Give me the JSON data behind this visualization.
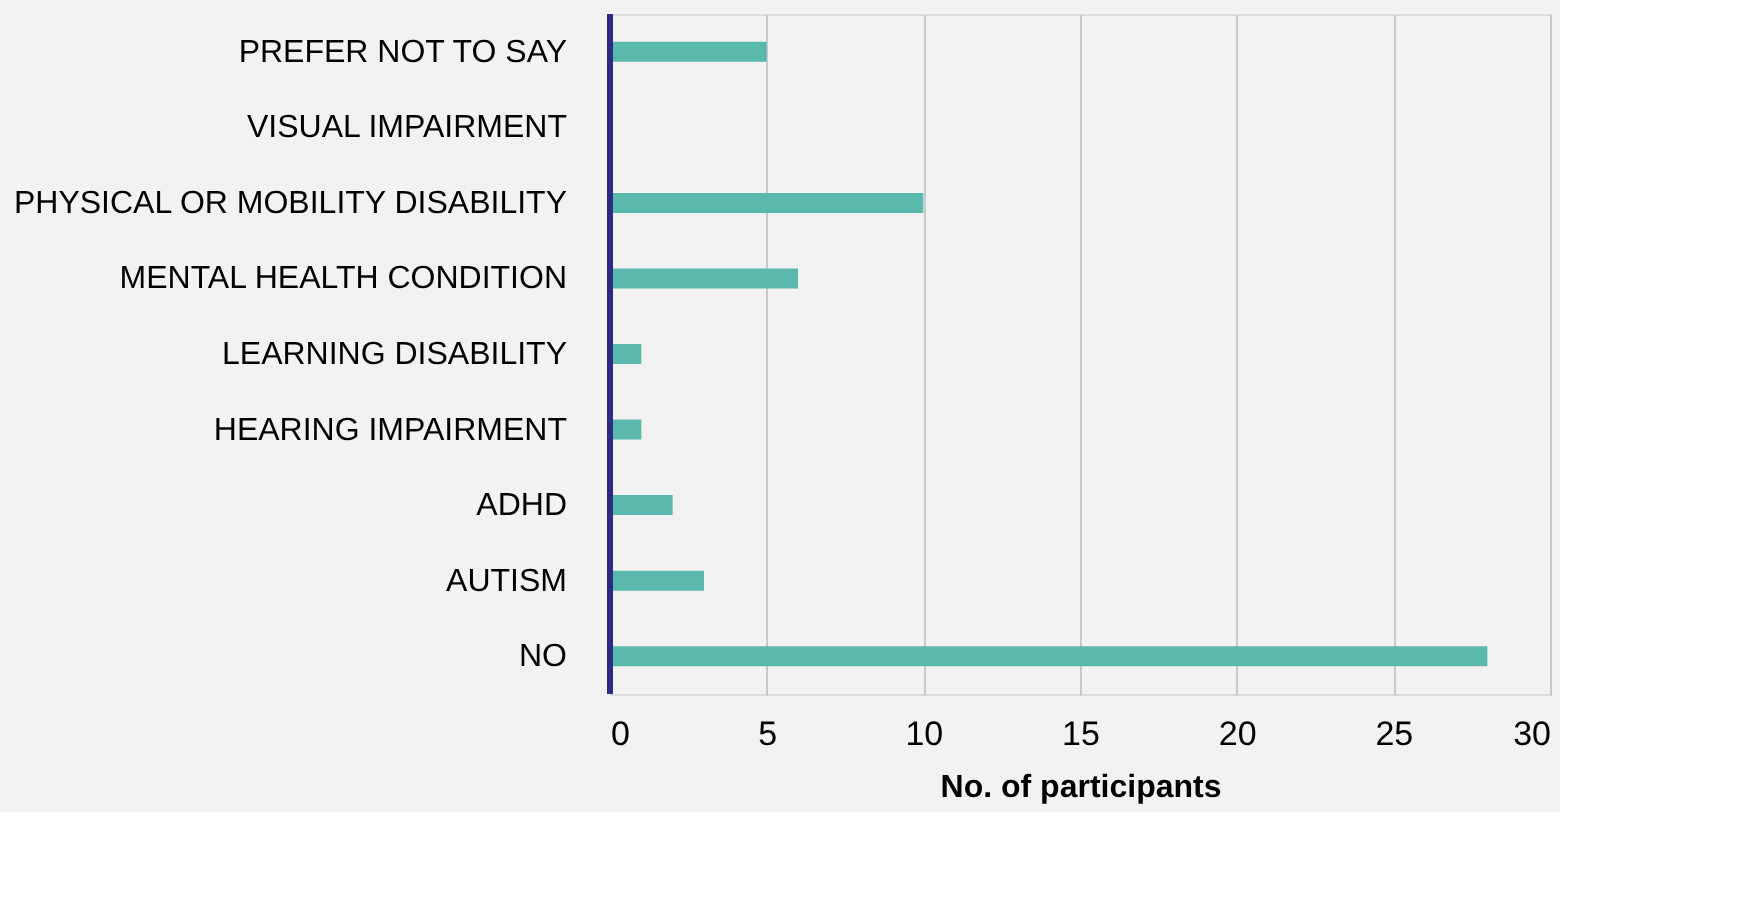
{
  "chart_data": {
    "type": "bar",
    "orientation": "horizontal",
    "xlabel": "No. of participants",
    "categories": [
      "PREFER NOT TO SAY",
      "VISUAL IMPAIRMENT",
      "PHYSICAL OR MOBILITY DISABILITY",
      "MENTAL HEALTH CONDITION",
      "LEARNING DISABILITY",
      "HEARING IMPAIRMENT",
      "ADHD",
      "AUTISM",
      "NO"
    ],
    "values": [
      5,
      0,
      10,
      6,
      1,
      1,
      2,
      3,
      28
    ],
    "color": "#5bb8ad",
    "xlim": [
      0,
      30
    ],
    "xticks": [
      0,
      5,
      10,
      15,
      20,
      25,
      30
    ],
    "grid": "x"
  }
}
